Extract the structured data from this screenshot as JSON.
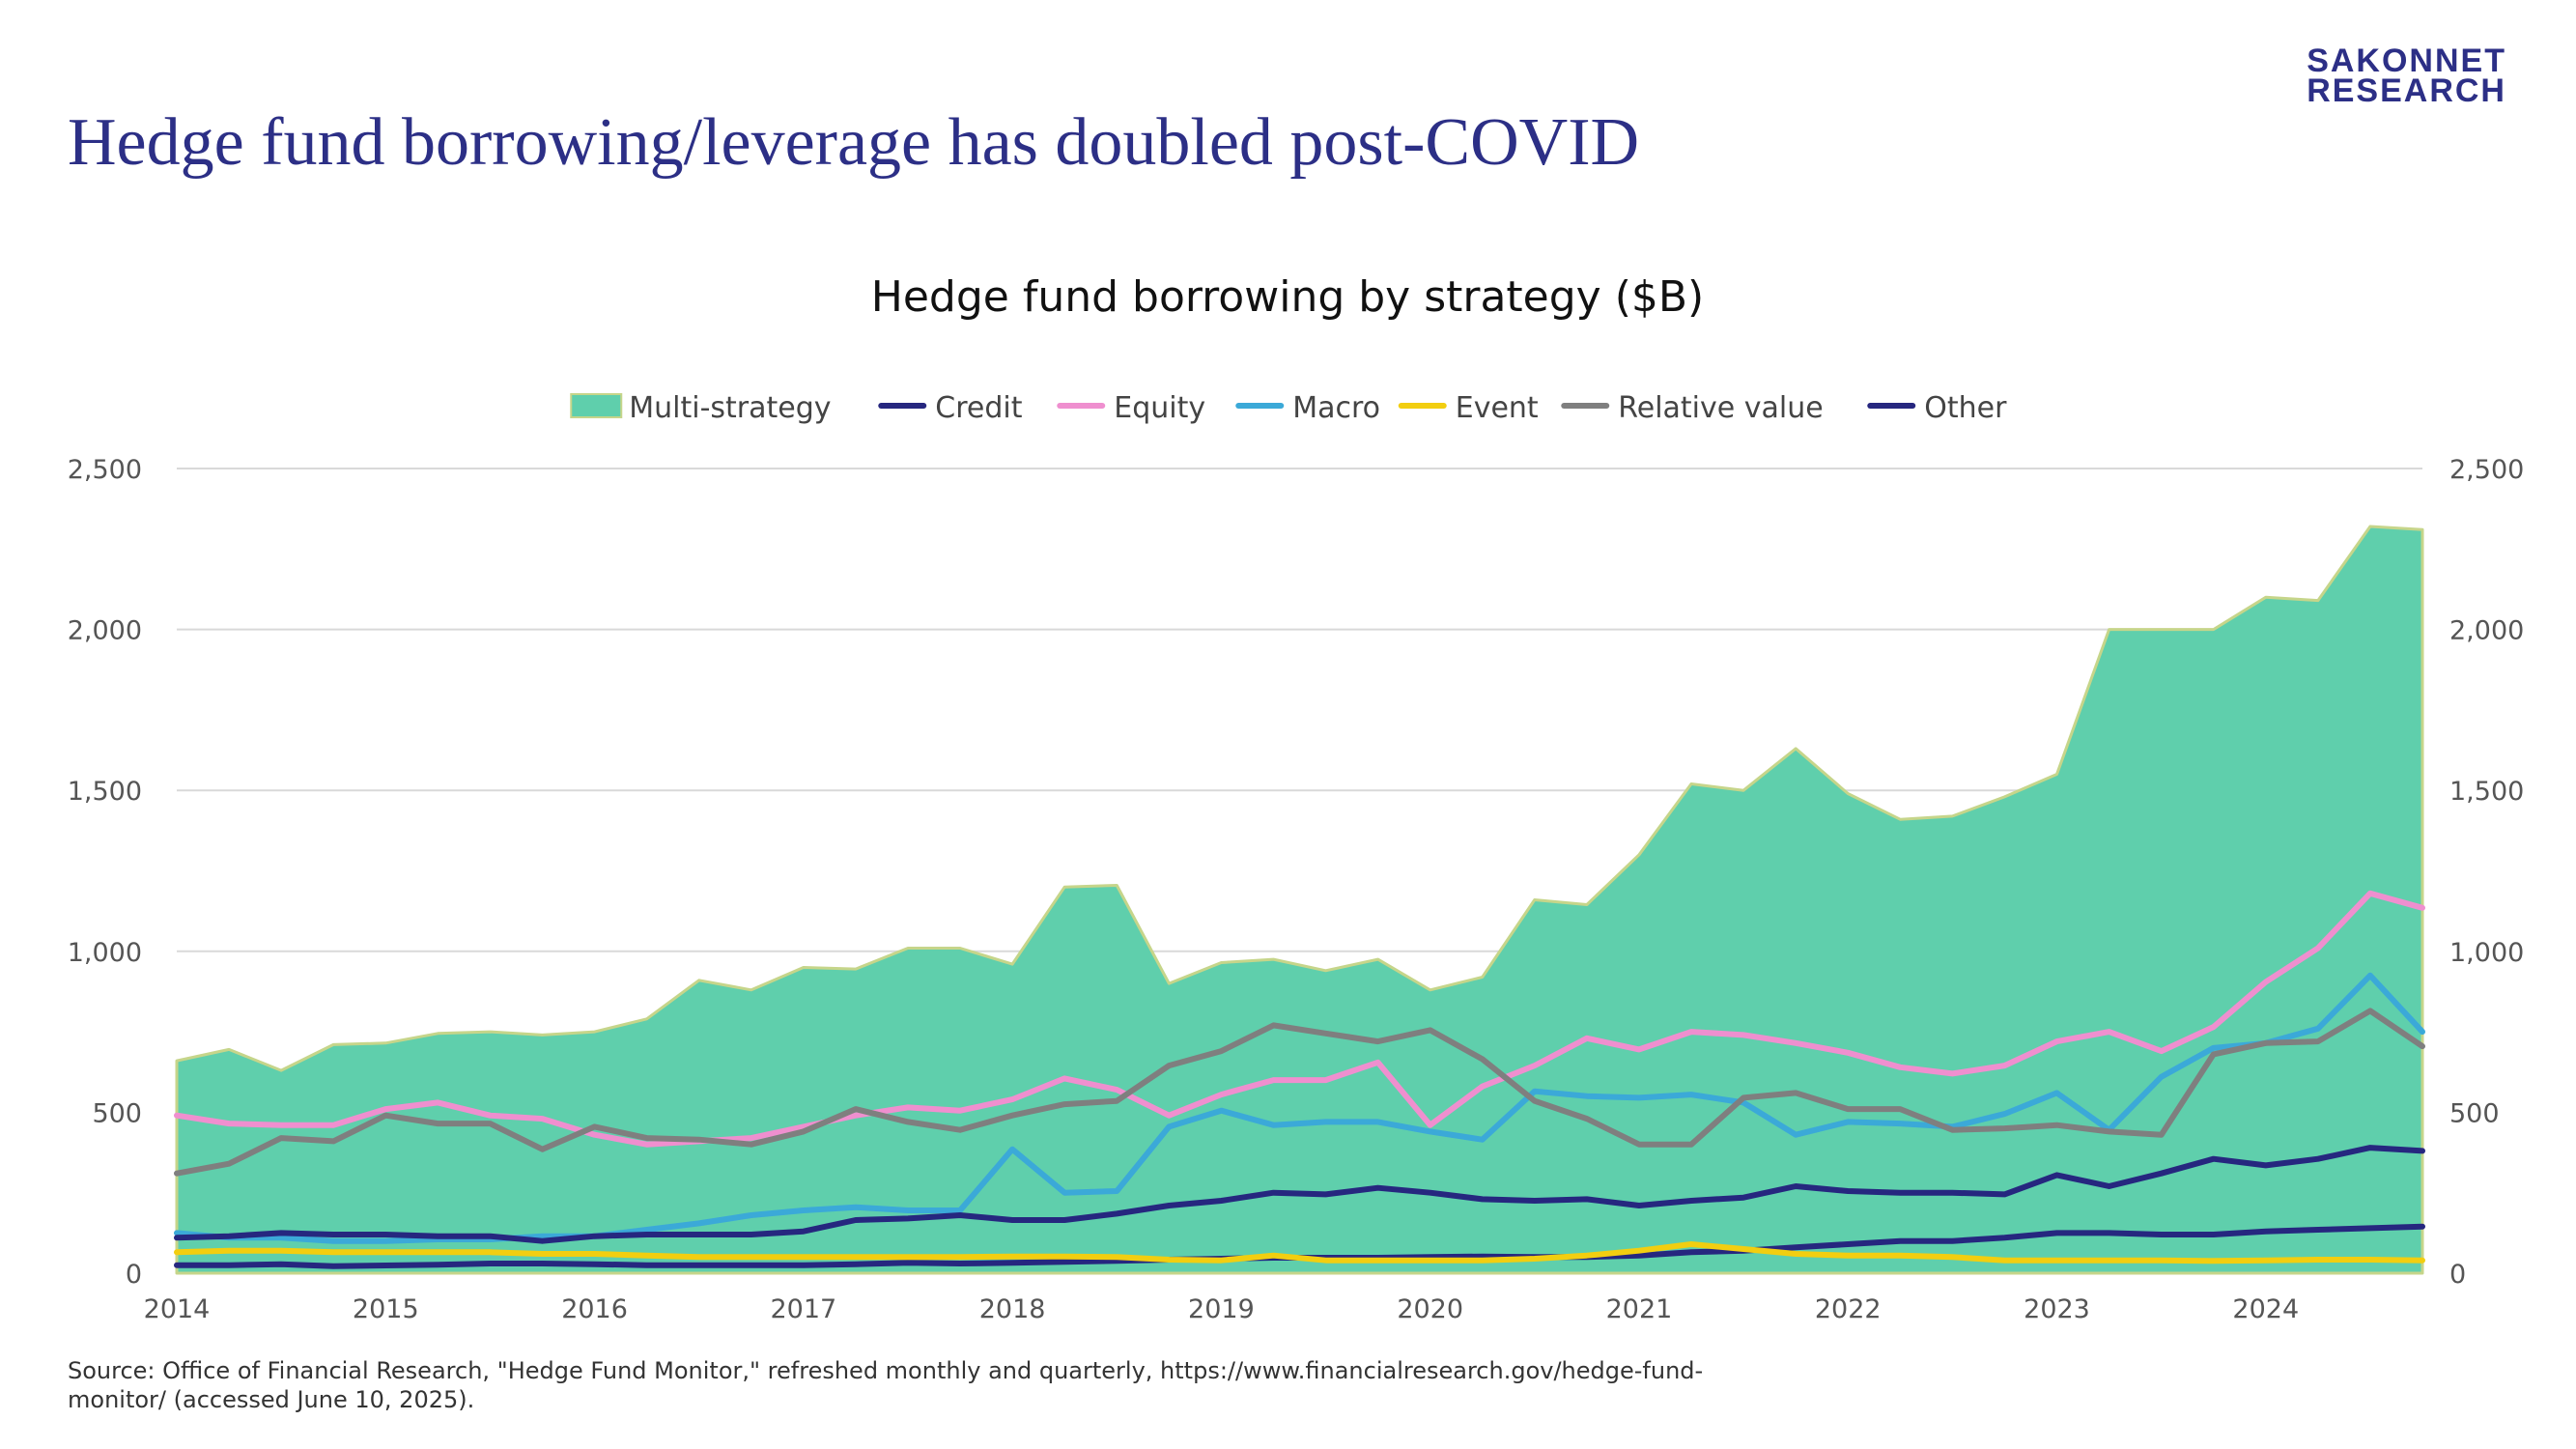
{
  "logo": {
    "line1": "SAKONNET",
    "line2": "RESEARCH"
  },
  "slide_title": "Hedge fund borrowing/leverage has doubled post-COVID",
  "source_note": "Source: Office of Financial Research, \"Hedge Fund Monitor,\" refreshed monthly and quarterly, https://www.financialresearch.gov/hedge-fund-monitor/ (accessed June 10, 2025).",
  "colors": {
    "multi_fill": "#5fcfac",
    "multi_edge": "#c6d58a",
    "credit": "#26277f",
    "equity": "#ef8fcf",
    "macro": "#3ba9d8",
    "event": "#f2ce10",
    "relative_value": "#7f7f7f",
    "other": "#26277f",
    "grid": "#d9d9d9",
    "axis": "#bfbfbf"
  },
  "chart_data": {
    "type": "area",
    "title": "Hedge fund borrowing by strategy ($B)",
    "xlabel": "",
    "ylabel": "",
    "x_start": 2014,
    "x_step": 0.25,
    "x_ticks": [
      "2014",
      "2015",
      "2016",
      "2017",
      "2018",
      "2019",
      "2020",
      "2021",
      "2022",
      "2023",
      "2024"
    ],
    "ylim": [
      0,
      2500
    ],
    "y_ticks": [
      0,
      500,
      1000,
      1500,
      2000,
      2500
    ],
    "y_tick_labels": [
      "0",
      "500",
      "1,000",
      "1,500",
      "2,000",
      "2,500"
    ],
    "secondary_y_axis": true,
    "grid": true,
    "legend_position": "top",
    "series": [
      {
        "name": "Multi-strategy",
        "type": "area",
        "color": "#5fcfac",
        "values": [
          660,
          695,
          630,
          710,
          715,
          745,
          750,
          740,
          750,
          790,
          910,
          880,
          950,
          945,
          1010,
          1010,
          960,
          1200,
          1205,
          900,
          965,
          975,
          940,
          975,
          880,
          920,
          1160,
          1145,
          1300,
          1520,
          1500,
          1630,
          1490,
          1410,
          1420,
          1480,
          1550,
          2000,
          2000,
          2000,
          2100,
          2090,
          2320,
          2310
        ]
      },
      {
        "name": "Credit",
        "type": "line",
        "color": "#26277f",
        "values": [
          25,
          25,
          28,
          22,
          24,
          26,
          30,
          30,
          28,
          25,
          25,
          25,
          25,
          28,
          32,
          30,
          32,
          35,
          38,
          42,
          45,
          48,
          48,
          48,
          50,
          52,
          50,
          50,
          55,
          65,
          70,
          80,
          90,
          100,
          100,
          110,
          125,
          125,
          120,
          120,
          130,
          135,
          140,
          145
        ]
      },
      {
        "name": "Equity",
        "type": "line",
        "color": "#ef8fcf",
        "values": [
          490,
          465,
          460,
          460,
          510,
          530,
          490,
          480,
          430,
          400,
          410,
          420,
          455,
          490,
          515,
          505,
          540,
          605,
          570,
          490,
          555,
          600,
          600,
          655,
          460,
          580,
          645,
          730,
          695,
          750,
          740,
          715,
          685,
          640,
          620,
          645,
          720,
          750,
          690,
          765,
          905,
          1010,
          1180,
          1135
        ]
      },
      {
        "name": "Macro",
        "type": "line",
        "color": "#3ba9d8",
        "values": [
          125,
          110,
          110,
          100,
          100,
          105,
          105,
          115,
          115,
          135,
          155,
          180,
          195,
          205,
          195,
          195,
          385,
          250,
          255,
          455,
          505,
          460,
          470,
          470,
          440,
          415,
          565,
          550,
          545,
          555,
          530,
          430,
          470,
          465,
          455,
          495,
          560,
          445,
          610,
          700,
          715,
          760,
          925,
          750
        ]
      },
      {
        "name": "Event",
        "type": "line",
        "color": "#f2ce10",
        "values": [
          65,
          70,
          70,
          65,
          65,
          65,
          65,
          60,
          60,
          55,
          50,
          50,
          50,
          50,
          50,
          50,
          52,
          52,
          50,
          42,
          40,
          55,
          40,
          40,
          40,
          40,
          45,
          55,
          70,
          90,
          75,
          60,
          55,
          55,
          50,
          40,
          40,
          40,
          40,
          38,
          40,
          42,
          42,
          40
        ]
      },
      {
        "name": "Relative value",
        "type": "line",
        "color": "#7f7f7f",
        "values": [
          310,
          340,
          420,
          410,
          490,
          465,
          465,
          385,
          455,
          420,
          415,
          400,
          440,
          510,
          470,
          445,
          490,
          525,
          535,
          645,
          690,
          770,
          745,
          720,
          755,
          665,
          535,
          480,
          400,
          400,
          545,
          560,
          510,
          510,
          445,
          450,
          460,
          440,
          430,
          680,
          715,
          720,
          815,
          705
        ]
      },
      {
        "name": "Other",
        "type": "line",
        "color": "#26277f",
        "values": [
          110,
          115,
          125,
          120,
          120,
          115,
          115,
          100,
          115,
          120,
          120,
          120,
          130,
          165,
          170,
          180,
          165,
          165,
          185,
          210,
          225,
          250,
          245,
          265,
          250,
          230,
          225,
          230,
          210,
          225,
          235,
          270,
          255,
          250,
          250,
          245,
          305,
          270,
          310,
          355,
          335,
          355,
          390,
          380
        ]
      }
    ]
  }
}
